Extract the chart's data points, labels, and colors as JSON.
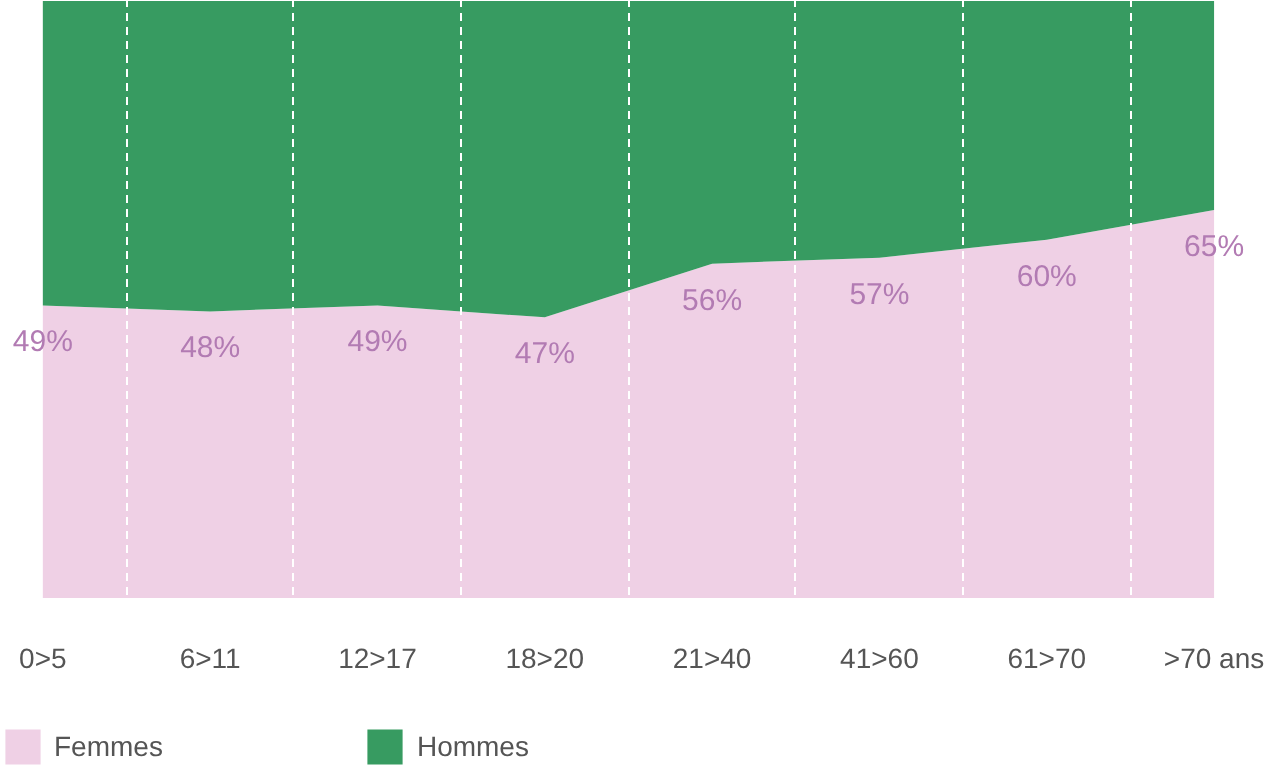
{
  "chart_data": {
    "type": "area",
    "stacked": true,
    "categories": [
      "0>5",
      "6>11",
      "12>17",
      "18>20",
      "21>40",
      "41>60",
      "61>70",
      ">70 ans"
    ],
    "tick_labels": "x",
    "grid": "x",
    "legend": "bottom",
    "series": [
      {
        "name": "Femmes",
        "color": "#efd0e5",
        "values": [
          49,
          48,
          49,
          47,
          56,
          57,
          60,
          65
        ],
        "value_labels": [
          "49%",
          "48%",
          "49%",
          "47%",
          "56%",
          "57%",
          "60%",
          "65%"
        ]
      },
      {
        "name": "Hommes",
        "color": "#379b61",
        "values": [
          51,
          52,
          51,
          53,
          44,
          43,
          40,
          35
        ]
      }
    ]
  }
}
